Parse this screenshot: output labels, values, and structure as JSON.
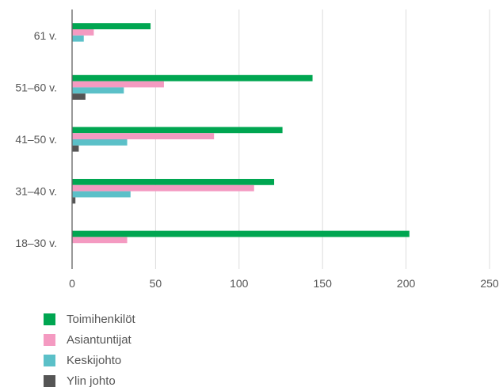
{
  "chart_data": {
    "type": "bar",
    "orientation": "horizontal",
    "categories": [
      "61 v.",
      "51–60 v.",
      "41–50 v.",
      "31–40 v.",
      "18–30 v."
    ],
    "series": [
      {
        "name": "Toimihenkilöt",
        "color": "#00a651",
        "values": [
          47,
          144,
          126,
          121,
          202
        ]
      },
      {
        "name": "Asiantuntijat",
        "color": "#f49ac1",
        "values": [
          13,
          55,
          85,
          109,
          33
        ]
      },
      {
        "name": "Keskijohto",
        "color": "#5bc0c8",
        "values": [
          7,
          31,
          33,
          35,
          0
        ]
      },
      {
        "name": "Ylin johto",
        "color": "#555555",
        "values": [
          0,
          8,
          4,
          2,
          0
        ]
      }
    ],
    "xlim": [
      0,
      250
    ],
    "xticks": [
      0,
      50,
      100,
      150,
      200,
      250
    ],
    "grid": true,
    "legend_position": "bottom-left"
  }
}
